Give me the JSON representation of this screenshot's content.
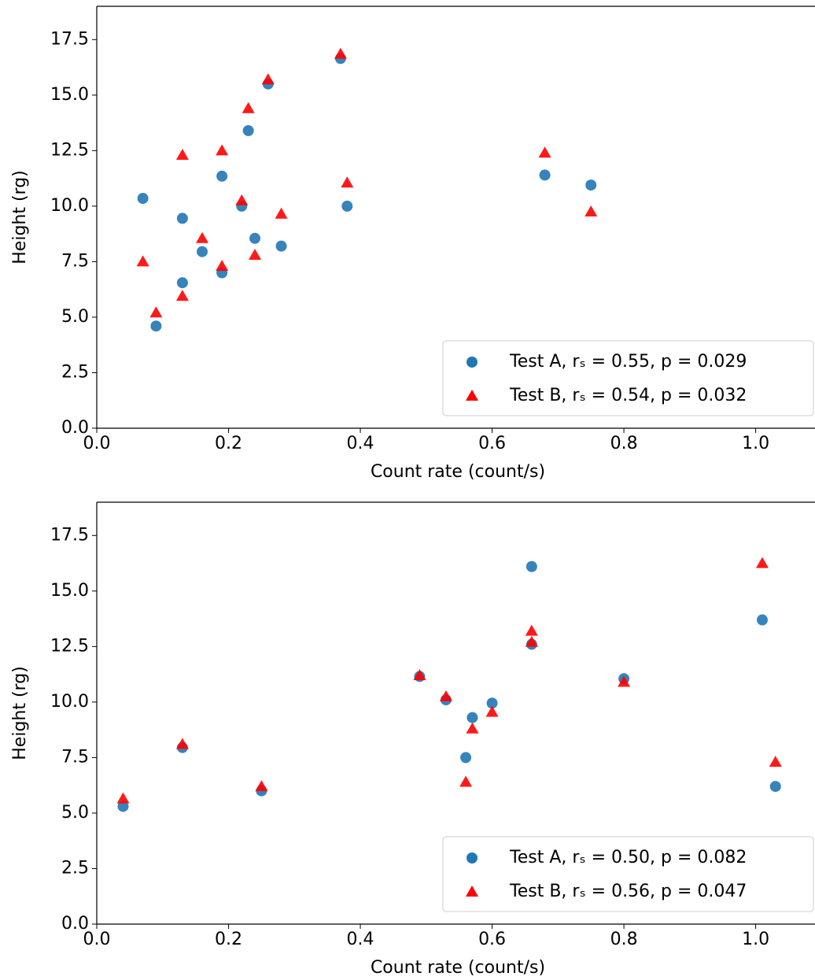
{
  "chart_data": [
    {
      "type": "scatter",
      "xlabel": "Count rate (count/s)",
      "ylabel": "Height (rg)",
      "xlim": [
        0,
        1.09
      ],
      "ylim": [
        0,
        19
      ],
      "xticks": [
        {
          "value": 0,
          "label": "0.0"
        },
        0.2,
        0.4,
        0.6,
        0.8,
        {
          "value": 1,
          "label": "1.0"
        }
      ],
      "yticks": [
        {
          "value": 0,
          "label": "0.0"
        },
        2.5,
        {
          "value": 5,
          "label": "5.0"
        },
        7.5,
        {
          "value": 10,
          "label": "10.0"
        },
        12.5,
        {
          "value": 15,
          "label": "15.0"
        },
        17.5
      ],
      "legend": "lower right",
      "series": [
        {
          "name": "Test A, rₛ = 0.55, p = 0.029",
          "color": "#1f77b4",
          "marker": "circle",
          "x": [
            0.07,
            0.09,
            0.13,
            0.13,
            0.16,
            0.19,
            0.19,
            0.22,
            0.23,
            0.24,
            0.26,
            0.28,
            0.37,
            0.38,
            0.68,
            0.75
          ],
          "values": [
            10.35,
            4.6,
            9.45,
            6.55,
            7.95,
            11.35,
            7.0,
            10.0,
            13.4,
            8.55,
            15.5,
            8.2,
            16.65,
            10.0,
            11.4,
            10.95
          ]
        },
        {
          "name": "Test B, rₛ = 0.54, p = 0.032",
          "color": "#ff0000",
          "marker": "triangle",
          "x": [
            0.07,
            0.09,
            0.13,
            0.13,
            0.16,
            0.19,
            0.19,
            0.22,
            0.23,
            0.24,
            0.26,
            0.28,
            0.37,
            0.38,
            0.68,
            0.75
          ],
          "values": [
            7.5,
            5.2,
            12.3,
            5.95,
            8.55,
            12.5,
            7.3,
            10.25,
            14.4,
            7.8,
            15.7,
            9.65,
            16.85,
            11.05,
            12.4,
            9.75
          ]
        }
      ]
    },
    {
      "type": "scatter",
      "xlabel": "Count rate (count/s)",
      "ylabel": "Height (rg)",
      "xlim": [
        0,
        1.09
      ],
      "ylim": [
        0,
        19
      ],
      "xticks": [
        {
          "value": 0,
          "label": "0.0"
        },
        0.2,
        0.4,
        0.6,
        0.8,
        {
          "value": 1,
          "label": "1.0"
        }
      ],
      "yticks": [
        {
          "value": 0,
          "label": "0.0"
        },
        2.5,
        {
          "value": 5,
          "label": "5.0"
        },
        7.5,
        {
          "value": 10,
          "label": "10.0"
        },
        12.5,
        {
          "value": 15,
          "label": "15.0"
        },
        17.5
      ],
      "legend": "lower right",
      "series": [
        {
          "name": "Test A, rₛ = 0.50, p = 0.082",
          "color": "#1f77b4",
          "marker": "circle",
          "x": [
            0.04,
            0.13,
            0.25,
            0.49,
            0.53,
            0.56,
            0.57,
            0.6,
            0.66,
            0.66,
            0.8,
            1.01,
            1.03
          ],
          "values": [
            5.3,
            7.95,
            6.0,
            11.15,
            10.1,
            7.5,
            9.3,
            9.95,
            16.1,
            12.6,
            11.05,
            13.7,
            6.2
          ]
        },
        {
          "name": "Test B, rₛ = 0.56, p = 0.047",
          "color": "#ff0000",
          "marker": "triangle",
          "x": [
            0.04,
            0.13,
            0.25,
            0.49,
            0.53,
            0.56,
            0.57,
            0.6,
            0.66,
            0.66,
            0.8,
            1.01,
            1.03
          ],
          "values": [
            5.65,
            8.1,
            6.2,
            11.2,
            10.25,
            6.4,
            8.8,
            9.55,
            13.2,
            12.7,
            10.9,
            16.25,
            7.3
          ]
        }
      ]
    }
  ]
}
